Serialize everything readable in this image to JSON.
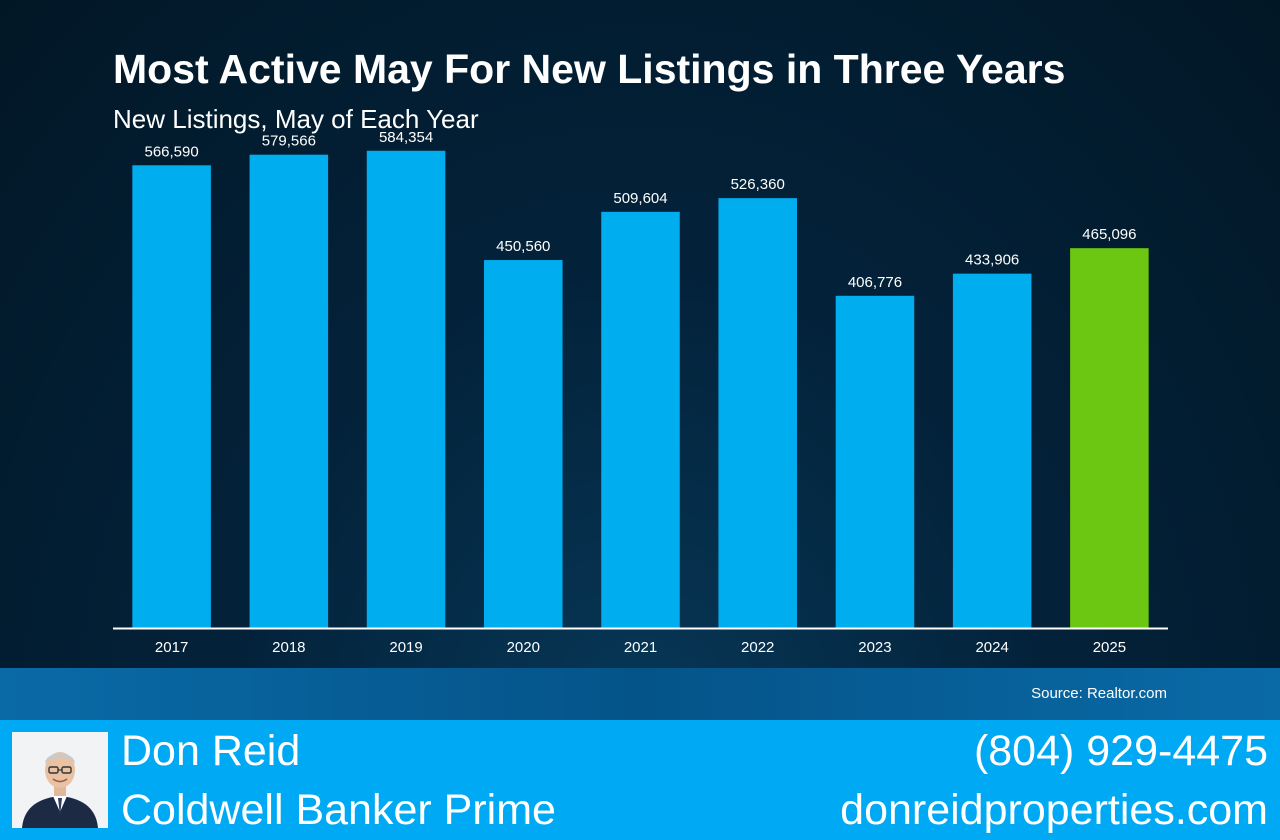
{
  "chart_data": {
    "type": "bar",
    "title": "Most Active May For New Listings in Three Years",
    "subtitle": "New Listings, May of Each Year",
    "categories": [
      "2017",
      "2018",
      "2019",
      "2020",
      "2021",
      "2022",
      "2023",
      "2024",
      "2025"
    ],
    "values": [
      566590,
      579566,
      584354,
      450560,
      509604,
      526360,
      406776,
      433906,
      465096
    ],
    "value_labels": [
      "566,590",
      "579,566",
      "584,354",
      "450,560",
      "509,604",
      "526,360",
      "406,776",
      "433,906",
      "465,096"
    ],
    "highlight_category": "2025",
    "colors": {
      "bar": "#00adef",
      "highlight": "#6cc712",
      "axis": "#ffffff",
      "text": "#ffffff"
    },
    "ylim": [
      0,
      600000
    ],
    "grid": false,
    "legend": "none",
    "source": "Source: Realtor.com"
  },
  "footer": {
    "name": "Don Reid",
    "company": "Coldwell Banker Prime",
    "phone": "(804) 929-4475",
    "website": "donreidproperties.com",
    "photo_icon": "agent-portrait-icon",
    "background_color": "#00a9f4"
  }
}
